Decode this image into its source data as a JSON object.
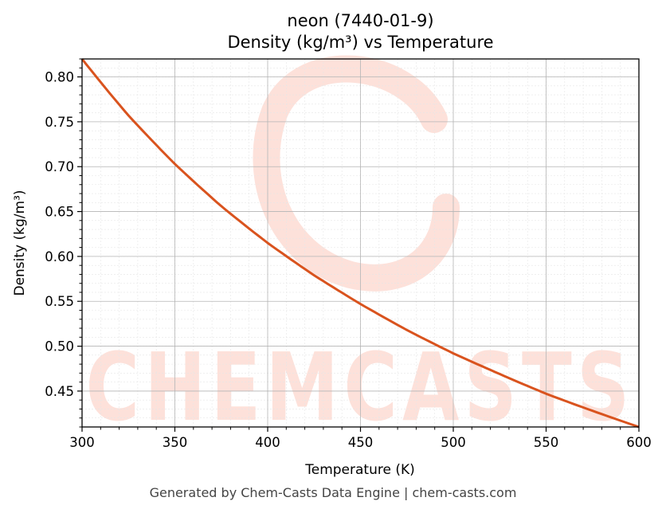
{
  "chart_data": {
    "type": "line",
    "title": "neon (7440-01-9)",
    "subtitle": "Density (kg/m³) vs Temperature",
    "xlabel": "Temperature (K)",
    "ylabel": "Density (kg/m³)",
    "xlim": [
      300,
      600
    ],
    "ylim": [
      0.41,
      0.82
    ],
    "x_ticks": [
      300,
      350,
      400,
      450,
      500,
      550,
      600
    ],
    "y_ticks": [
      0.45,
      0.5,
      0.55,
      0.6,
      0.65,
      0.7,
      0.75,
      0.8
    ],
    "grid": true,
    "series": [
      {
        "color": "#d9531e",
        "x": [
          300,
          325,
          350,
          375,
          400,
          425,
          450,
          475,
          500,
          525,
          550,
          575,
          600
        ],
        "y": [
          0.82,
          0.757,
          0.703,
          0.656,
          0.615,
          0.579,
          0.547,
          0.518,
          0.492,
          0.469,
          0.447,
          0.428,
          0.41
        ]
      }
    ]
  },
  "watermark": {
    "text": "CHEMCASTS",
    "color": "#fde1da"
  },
  "footer": "Generated by Chem-Casts Data Engine | chem-casts.com"
}
